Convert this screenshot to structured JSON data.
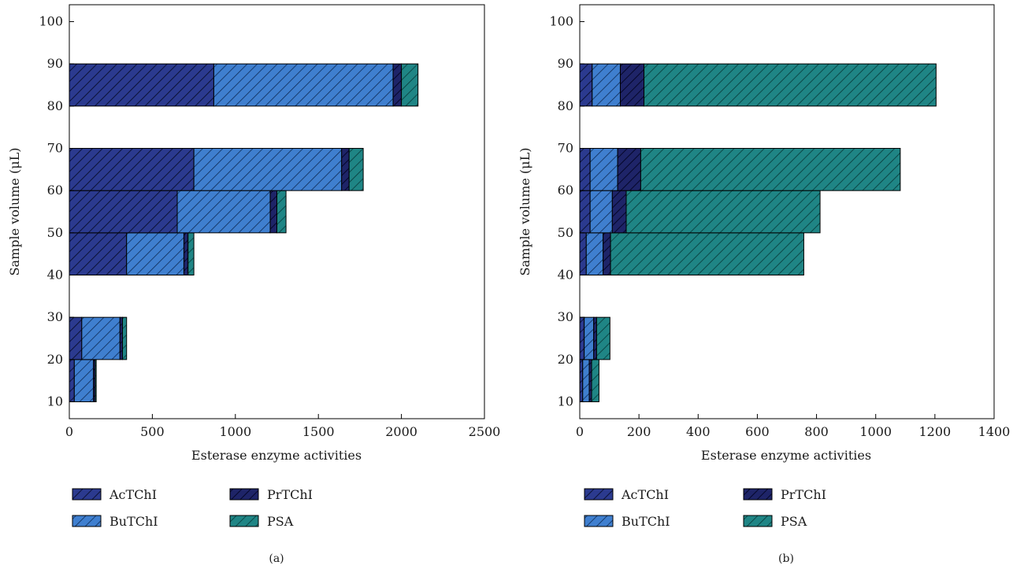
{
  "colors": {
    "AcTChI": "#2b3a8f",
    "BuTChI": "#3f7fcf",
    "PrTChI": "#1e2468",
    "PSA": "#1f8585"
  },
  "chart_data": [
    {
      "type": "bar",
      "orientation": "horizontal",
      "stacked": true,
      "panel_label": "(a)",
      "xlabel": "Esterase enzyme activities",
      "ylabel": "Sample volume (μL)",
      "xlim": [
        0,
        2500
      ],
      "ylim": [
        6,
        104
      ],
      "xticks": [
        0,
        500,
        1000,
        1500,
        2000,
        2500
      ],
      "yticks": [
        10,
        20,
        30,
        40,
        50,
        60,
        70,
        80,
        90,
        100
      ],
      "grid": false,
      "legend_position": "bottom",
      "categories": [
        15,
        25,
        45,
        55,
        65,
        85
      ],
      "series": [
        {
          "name": "AcTChI",
          "values": [
            30,
            75,
            345,
            650,
            750,
            870
          ]
        },
        {
          "name": "BuTChI",
          "values": [
            115,
            230,
            345,
            560,
            890,
            1080
          ]
        },
        {
          "name": "PrTChI",
          "values": [
            10,
            15,
            25,
            40,
            45,
            50
          ]
        },
        {
          "name": "PSA",
          "values": [
            7,
            25,
            35,
            55,
            85,
            100
          ]
        }
      ]
    },
    {
      "type": "bar",
      "orientation": "horizontal",
      "stacked": true,
      "panel_label": "(b)",
      "xlabel": "Esterase enzyme activities",
      "ylabel": "Sample volume (μL)",
      "xlim": [
        0,
        1400
      ],
      "ylim": [
        6,
        104
      ],
      "xticks": [
        0,
        200,
        400,
        600,
        800,
        1000,
        1200,
        1400
      ],
      "yticks": [
        10,
        20,
        30,
        40,
        50,
        60,
        70,
        80,
        90,
        100
      ],
      "grid": false,
      "legend_position": "bottom",
      "categories": [
        15,
        25,
        45,
        55,
        65,
        85
      ],
      "series": [
        {
          "name": "AcTChI",
          "values": [
            10,
            15,
            22,
            35,
            35,
            42
          ]
        },
        {
          "name": "BuTChI",
          "values": [
            22,
            32,
            57,
            75,
            93,
            95
          ]
        },
        {
          "name": "PrTChI",
          "values": [
            8,
            10,
            25,
            47,
            78,
            80
          ]
        },
        {
          "name": "PSA",
          "values": [
            25,
            45,
            653,
            655,
            877,
            987
          ]
        }
      ]
    }
  ]
}
